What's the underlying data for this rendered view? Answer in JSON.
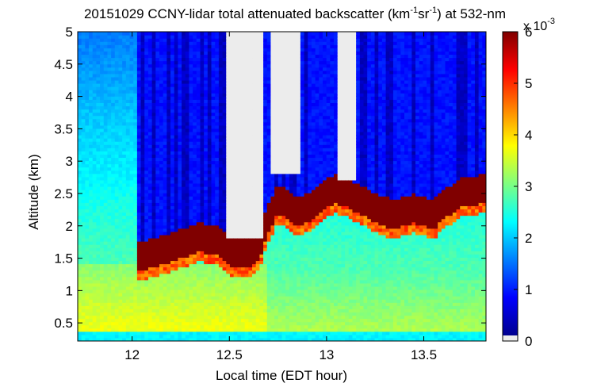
{
  "chart_data": {
    "type": "heatmap",
    "title": {
      "prefix": "20151029 CCNY-lidar total attenuated backscatter (km",
      "sup1": "-1",
      "mid": "sr",
      "sup2": "-1",
      "suffix": ") at 532-nm"
    },
    "xlabel": "Local time (EDT hour)",
    "ylabel": "Altitude (km)",
    "xlim": [
      11.72,
      13.82
    ],
    "ylim": [
      0.22,
      5.0
    ],
    "xticks": [
      12,
      12.5,
      13,
      13.5
    ],
    "xtick_labels": [
      "12",
      "12.5",
      "13",
      "13.5"
    ],
    "yticks": [
      0.5,
      1,
      1.5,
      2,
      2.5,
      3,
      3.5,
      4,
      4.5,
      5
    ],
    "ytick_labels": [
      "0.5",
      "1",
      "1.5",
      "2",
      "2.5",
      "3",
      "3.5",
      "4",
      "4.5",
      "5"
    ],
    "colorbar": {
      "range": [
        0,
        6
      ],
      "ticks": [
        0,
        1,
        2,
        3,
        4,
        5,
        6
      ],
      "tick_labels": [
        "0",
        "1",
        "2",
        "3",
        "4",
        "5",
        "6"
      ],
      "multiplier": "x 10",
      "multiplier_exponent": "-3",
      "colormap": "jet",
      "saturated_color": "#800000",
      "nodata_color": "#ececec"
    },
    "cloud_base_profile": {
      "time": [
        12.02,
        12.05,
        12.1,
        12.15,
        12.2,
        12.25,
        12.3,
        12.35,
        12.4,
        12.45,
        12.5,
        12.55,
        12.6,
        12.65,
        12.7,
        12.75,
        12.8,
        12.85,
        12.9,
        12.95,
        13.0,
        13.05,
        13.1,
        13.15,
        13.2,
        13.25,
        13.3,
        13.35,
        13.4,
        13.45,
        13.5,
        13.55,
        13.6,
        13.65,
        13.7,
        13.75,
        13.8
      ],
      "altitude_km": [
        1.35,
        1.3,
        1.35,
        1.4,
        1.45,
        1.5,
        1.55,
        1.6,
        1.55,
        1.55,
        1.4,
        1.35,
        1.35,
        1.45,
        1.9,
        2.2,
        2.1,
        2.0,
        2.05,
        2.15,
        2.3,
        2.35,
        2.3,
        2.2,
        2.15,
        2.05,
        2.0,
        1.95,
        2.0,
        2.05,
        2.0,
        1.95,
        2.1,
        2.2,
        2.3,
        2.3,
        2.35
      ]
    },
    "no_signal_regions": [
      {
        "time": [
          12.48,
          12.67
        ],
        "altitude_km": [
          1.8,
          5.0
        ]
      },
      {
        "time": [
          12.72,
          12.87
        ],
        "altitude_km": [
          2.8,
          5.0
        ]
      },
      {
        "time": [
          13.05,
          13.15
        ],
        "altitude_km": [
          2.7,
          5.0
        ]
      }
    ]
  }
}
